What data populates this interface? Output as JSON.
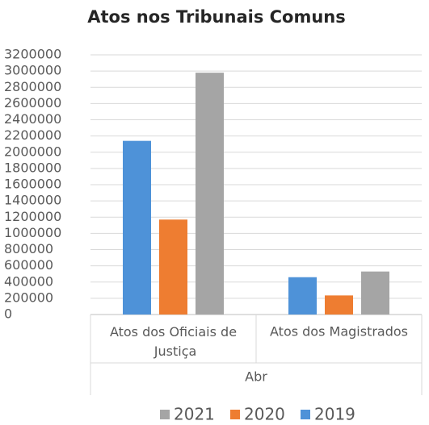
{
  "chart_data": {
    "type": "bar",
    "title": "Atos nos Tribunais Comuns",
    "categories": [
      "Atos dos Oficiais de Justiça",
      "Atos dos Magistrados"
    ],
    "xlabel": "Abr",
    "series": [
      {
        "name": "2019",
        "color": "#4e92d8",
        "values": [
          2140000,
          460000
        ]
      },
      {
        "name": "2020",
        "color": "#ee7d31",
        "values": [
          1170000,
          235000
        ]
      },
      {
        "name": "2021",
        "color": "#a5a5a5",
        "values": [
          2980000,
          530000
        ]
      }
    ],
    "ylim": [
      0,
      3200000
    ],
    "yticks": [
      0,
      200000,
      400000,
      600000,
      800000,
      1000000,
      1200000,
      1400000,
      1600000,
      1800000,
      2000000,
      2200000,
      2400000,
      2600000,
      2800000,
      3000000,
      3200000
    ],
    "grid": true,
    "legend": "bottom"
  }
}
